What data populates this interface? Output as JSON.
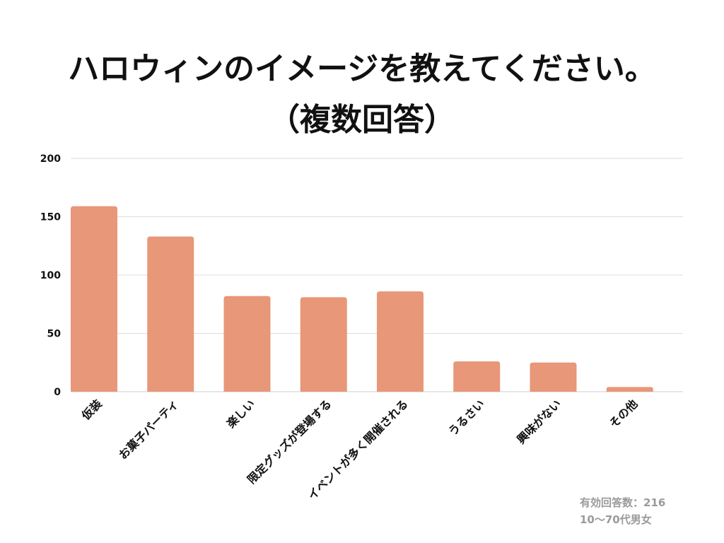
{
  "header": {
    "title_line1": "ハロウィンのイメージを教えてください。",
    "title_line2": "（複数回答）"
  },
  "footer": {
    "sample_size": "有効回答数：216",
    "demographic": "10〜70代男女"
  },
  "colors": {
    "bar": "#e89778",
    "grid": "#dddddd",
    "text": "#111111",
    "note": "#9a9a9a"
  },
  "chart_data": {
    "type": "bar",
    "categories": [
      "仮装",
      "お菓子パーティ",
      "楽しい",
      "限定グッズが登場する",
      "イベントが多く開催される",
      "うるさい",
      "興味がない",
      "その他"
    ],
    "values": [
      159,
      133,
      82,
      81,
      86,
      26,
      25,
      4
    ],
    "ylim": [
      0,
      200
    ],
    "yticks": [
      0,
      50,
      100,
      150,
      200
    ],
    "grid": true,
    "legend": "none"
  }
}
